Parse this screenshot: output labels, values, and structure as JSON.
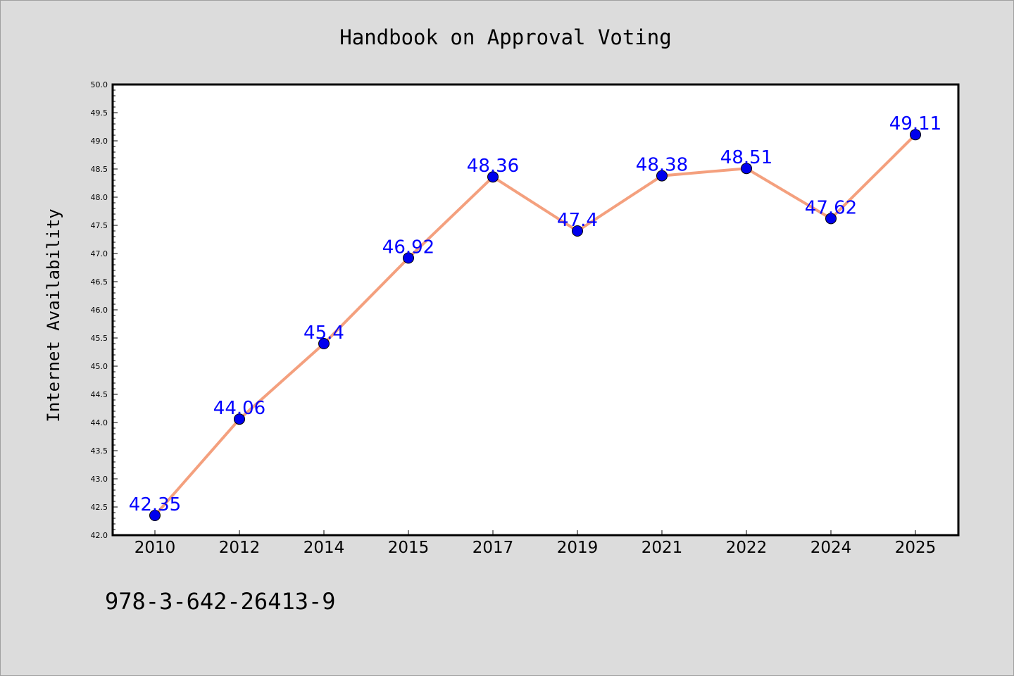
{
  "chart_data": {
    "type": "line",
    "title": "Handbook on Approval Voting",
    "xlabel": "",
    "ylabel": "Internet Availability",
    "categories": [
      "2010",
      "2012",
      "2014",
      "2015",
      "2017",
      "2019",
      "2021",
      "2022",
      "2024",
      "2025"
    ],
    "values": [
      42.35,
      44.06,
      45.4,
      46.92,
      48.36,
      47.4,
      48.38,
      48.51,
      47.62,
      49.11
    ],
    "data_labels": [
      "42.35",
      "44.06",
      "45.4",
      "46.92",
      "48.36",
      "47.4",
      "48.38",
      "48.51",
      "47.62",
      "49.11"
    ],
    "ylim": [
      42.0,
      50.0
    ],
    "y_ticks": [
      "42.0",
      "42.5",
      "43.0",
      "43.5",
      "44.0",
      "44.5",
      "45.0",
      "45.5",
      "46.0",
      "46.5",
      "47.0",
      "47.5",
      "48.0",
      "48.5",
      "49.0",
      "49.5",
      "50.0"
    ],
    "grid": false,
    "legend": "none",
    "line_color": "#f4a07e",
    "marker_color": "#0000ee",
    "label_color": "#0000ff",
    "plot_background": "#ffffff",
    "page_background": "#dcdcdc"
  },
  "footer": {
    "isbn": "978-3-642-26413-9"
  }
}
